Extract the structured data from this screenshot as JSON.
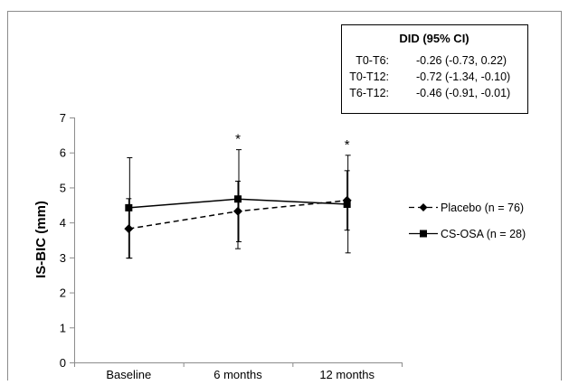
{
  "chart_data": {
    "type": "line",
    "categories": [
      "Baseline",
      "6 months",
      "12 months"
    ],
    "ylabel": "IS-BIC (mm)",
    "ylim": [
      0,
      7
    ],
    "yticks": [
      0,
      1,
      2,
      3,
      4,
      5,
      6,
      7
    ],
    "grid": false,
    "legend_position": "right",
    "series": [
      {
        "name": "Placebo (n = 76)",
        "values": [
          3.82,
          4.32,
          4.63
        ],
        "err_low": [
          2.98,
          3.25,
          3.78
        ],
        "err_high": [
          4.68,
          5.18,
          5.48
        ],
        "line_style": "dashed",
        "marker": "diamond",
        "color": "#000000"
      },
      {
        "name": "CS-OSA (n = 28)",
        "values": [
          4.42,
          4.67,
          4.52
        ],
        "err_low": [
          2.98,
          3.45,
          3.13
        ],
        "err_high": [
          5.85,
          6.08,
          5.92
        ],
        "line_style": "solid",
        "marker": "square",
        "color": "#000000"
      }
    ],
    "significance_markers": [
      {
        "category_index": 1,
        "label": "*"
      },
      {
        "category_index": 2,
        "label": "*"
      }
    ],
    "inset_table": {
      "title": "DID (95% CI)",
      "rows": [
        {
          "label": "T0-T6:",
          "value": "-0.26 (-0.73, 0.22)"
        },
        {
          "label": "T0-T12:",
          "value": "-0.72 (-1.34, -0.10)"
        },
        {
          "label": "T6-T12:",
          "value": "-0.46 (-0.91, -0.01)"
        }
      ]
    }
  }
}
